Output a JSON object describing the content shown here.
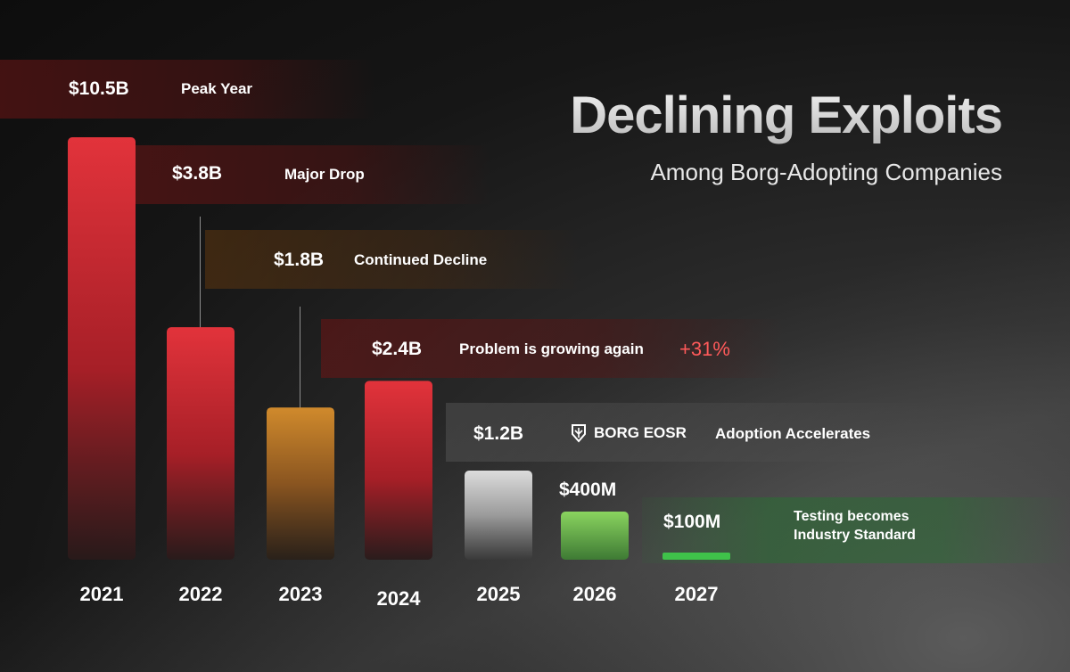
{
  "title": "Declining Exploits",
  "subtitle": "Among Borg-Adopting Companies",
  "colors": {
    "red": "#e0313a",
    "orange": "#c8842a",
    "grey": "#cfcfcf",
    "green": "#7ac95a",
    "green_line": "#3fc24a",
    "pct_red": "#ff5a5a"
  },
  "chart_data": {
    "type": "bar",
    "title": "Declining Exploits",
    "subtitle": "Among Borg-Adopting Companies",
    "categories": [
      "2021",
      "2022",
      "2023",
      "2024",
      "2025",
      "2026",
      "2027"
    ],
    "values": [
      10.5,
      3.8,
      1.8,
      2.4,
      1.2,
      0.4,
      0.1
    ],
    "value_labels": [
      "$10.5B",
      "$3.8B",
      "$1.8B",
      "$2.4B",
      "$1.2B",
      "$400M",
      "$100M"
    ],
    "units": "USD billions",
    "annotations": [
      "Peak Year",
      "Major Drop",
      "Continued Decline",
      "Problem is growing again",
      "Adoption Accelerates",
      "",
      "Testing becomes Industry Standard"
    ],
    "growth_label": "+31%",
    "badge": "BORG EOSR",
    "note_2027_lines": [
      "Testing becomes",
      "Industry Standard"
    ]
  }
}
